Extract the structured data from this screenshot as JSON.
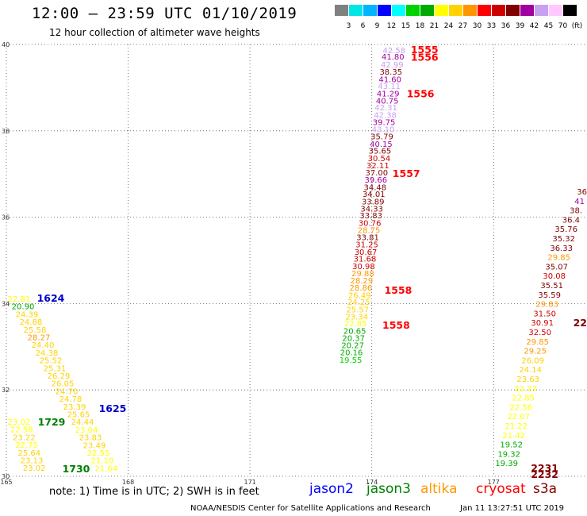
{
  "header": {
    "title": "12:00 – 23:59 UTC 01/10/2019",
    "subtitle": "12 hour collection of altimeter wave heights"
  },
  "colorbar": {
    "colors": [
      "#808080",
      "#00e5e5",
      "#00b4ff",
      "#0000ff",
      "#00ffff",
      "#00d200",
      "#00aa00",
      "#ffff00",
      "#ffd200",
      "#ff9600",
      "#ff0000",
      "#cc0000",
      "#800000",
      "#a000a0",
      "#c8a0f0",
      "#ffc8ff",
      "#000000"
    ],
    "labels": [
      "3",
      "6",
      "9",
      "12",
      "15",
      "18",
      "21",
      "24",
      "27",
      "30",
      "33",
      "36",
      "39",
      "42",
      "45",
      "70",
      "(ft)"
    ]
  },
  "chart_data": {
    "type": "scatter",
    "x_ticks": [
      "165",
      "168",
      "171",
      "174",
      "177"
    ],
    "y_ticks": [
      "40",
      "38",
      "36",
      "34",
      "32",
      "30"
    ],
    "xlim": [
      165,
      179.3
    ],
    "ylim": [
      30,
      40
    ],
    "grid": true,
    "satellites": {
      "jason2": "#0000ff",
      "jason3": "#008000",
      "altika": "#ff9900",
      "cryosat": "#ff0000",
      "s3a": "#800000"
    },
    "tracks": [
      {
        "name": "jason2",
        "color": "#0000ff",
        "points": [
          {
            "lon": 174.55,
            "lat": 39.8,
            "v": "42.58",
            "c": "#c8a0f0"
          },
          {
            "lon": 174.52,
            "lat": 39.65,
            "v": "41.80",
            "c": "#a000a0"
          },
          {
            "lon": 174.5,
            "lat": 39.47,
            "v": "42.99",
            "c": "#c8a0f0"
          },
          {
            "lon": 174.47,
            "lat": 39.3,
            "v": "38.35",
            "c": "#800000"
          },
          {
            "lon": 174.45,
            "lat": 39.13,
            "v": "41.60",
            "c": "#a000a0"
          },
          {
            "lon": 174.43,
            "lat": 38.97,
            "v": "43.11",
            "c": "#c8a0f0"
          },
          {
            "lon": 174.4,
            "lat": 38.8,
            "v": "41.29",
            "c": "#a000a0"
          },
          {
            "lon": 174.38,
            "lat": 38.63,
            "v": "40.75",
            "c": "#a000a0"
          },
          {
            "lon": 174.35,
            "lat": 38.47,
            "v": "42.31",
            "c": "#c8a0f0"
          },
          {
            "lon": 174.33,
            "lat": 38.3,
            "v": "42.38",
            "c": "#c8a0f0"
          },
          {
            "lon": 174.3,
            "lat": 38.13,
            "v": "39.75",
            "c": "#a000a0"
          },
          {
            "lon": 174.28,
            "lat": 37.97,
            "v": "43.10",
            "c": "#c8a0f0"
          },
          {
            "lon": 174.25,
            "lat": 37.8,
            "v": "35.79",
            "c": "#800000"
          },
          {
            "lon": 174.23,
            "lat": 37.63,
            "v": "40.15",
            "c": "#a000a0"
          },
          {
            "lon": 174.2,
            "lat": 37.47,
            "v": "35.65",
            "c": "#800000"
          },
          {
            "lon": 174.18,
            "lat": 37.3,
            "v": "30.54",
            "c": "#cc0000"
          },
          {
            "lon": 174.15,
            "lat": 37.13,
            "v": "32.11",
            "c": "#cc0000"
          },
          {
            "lon": 174.12,
            "lat": 36.97,
            "v": "37.00",
            "c": "#800000"
          },
          {
            "lon": 174.1,
            "lat": 36.8,
            "v": "39.66",
            "c": "#a000a0"
          },
          {
            "lon": 174.08,
            "lat": 36.63,
            "v": "34.48",
            "c": "#800000"
          },
          {
            "lon": 174.05,
            "lat": 36.47,
            "v": "34.01",
            "c": "#800000"
          },
          {
            "lon": 174.03,
            "lat": 36.3,
            "v": "33.89",
            "c": "#800000"
          },
          {
            "lon": 174.0,
            "lat": 36.13,
            "v": "34.33",
            "c": "#800000"
          },
          {
            "lon": 173.98,
            "lat": 35.97,
            "v": "33.83",
            "c": "#800000"
          },
          {
            "lon": 173.95,
            "lat": 35.8,
            "v": "30.76",
            "c": "#cc0000"
          },
          {
            "lon": 173.93,
            "lat": 35.63,
            "v": "28.75",
            "c": "#ff9600"
          },
          {
            "lon": 173.9,
            "lat": 35.47,
            "v": "33.81",
            "c": "#800000"
          },
          {
            "lon": 173.88,
            "lat": 35.3,
            "v": "31.25",
            "c": "#cc0000"
          },
          {
            "lon": 173.85,
            "lat": 35.13,
            "v": "30.67",
            "c": "#cc0000"
          },
          {
            "lon": 173.83,
            "lat": 34.97,
            "v": "31.68",
            "c": "#cc0000"
          },
          {
            "lon": 173.8,
            "lat": 34.8,
            "v": "30.98",
            "c": "#cc0000"
          },
          {
            "lon": 173.78,
            "lat": 34.63,
            "v": "29.88",
            "c": "#ff9600"
          },
          {
            "lon": 173.75,
            "lat": 34.47,
            "v": "28.29",
            "c": "#ff9600"
          },
          {
            "lon": 173.73,
            "lat": 34.3,
            "v": "28.86",
            "c": "#ff9600"
          },
          {
            "lon": 173.7,
            "lat": 34.13,
            "v": "26.49",
            "c": "#ffd200"
          },
          {
            "lon": 173.68,
            "lat": 33.97,
            "v": "24.25",
            "c": "#ffd200"
          },
          {
            "lon": 173.65,
            "lat": 33.8,
            "v": "25.57",
            "c": "#ffd200"
          },
          {
            "lon": 173.63,
            "lat": 33.63,
            "v": "23.34",
            "c": "#ffd200"
          },
          {
            "lon": 173.6,
            "lat": 33.47,
            "v": "22.85",
            "c": "#ffff00"
          },
          {
            "lon": 173.58,
            "lat": 33.3,
            "v": "20.65",
            "c": "#00aa00"
          },
          {
            "lon": 173.55,
            "lat": 33.13,
            "v": "20.37",
            "c": "#00aa00"
          },
          {
            "lon": 173.53,
            "lat": 32.97,
            "v": "20.27",
            "c": "#00aa00"
          },
          {
            "lon": 173.5,
            "lat": 32.8,
            "v": "20.16",
            "c": "#00aa00"
          },
          {
            "lon": 173.48,
            "lat": 32.63,
            "v": "19.55",
            "c": "#00d200"
          }
        ],
        "tags": [
          {
            "t": "1555",
            "lon": 175.3,
            "lat": 39.8,
            "c": "#ff0000"
          },
          {
            "t": "1556",
            "lon": 175.3,
            "lat": 39.62,
            "c": "#ff0000"
          },
          {
            "t": "1556",
            "lon": 175.2,
            "lat": 38.78,
            "c": "#ff0000"
          },
          {
            "t": "1557",
            "lon": 174.85,
            "lat": 36.93,
            "c": "#ff0000"
          },
          {
            "t": "1558",
            "lon": 174.65,
            "lat": 34.23,
            "c": "#ff0000"
          },
          {
            "t": "1558",
            "lon": 174.6,
            "lat": 33.42,
            "c": "#ff0000"
          }
        ]
      }
    ]
  },
  "footer": {
    "note": "note: 1) Time is in UTC; 2) SWH is in feet",
    "legend": [
      {
        "label": "jason2",
        "color": "#0000ff"
      },
      {
        "label": "jason3",
        "color": "#008000"
      },
      {
        "label": "altika",
        "color": "#ff9900"
      },
      {
        "label": "cryosat",
        "color": "#ff0000"
      },
      {
        "label": "s3a",
        "color": "#800000"
      }
    ],
    "credit": "NOAA/NESDIS Center for Satellite Applications and Research",
    "timestamp": "Jan 11 13:27:51 UTC 2019"
  },
  "left_track": {
    "points": [
      {
        "v": "22.81",
        "c": "#ffff00"
      },
      {
        "v": "20.90",
        "c": "#00aa00"
      },
      {
        "v": "24.39",
        "c": "#ffd200"
      },
      {
        "v": "24.88",
        "c": "#ffd200"
      },
      {
        "v": "25.58",
        "c": "#ffd200"
      },
      {
        "v": "28.27",
        "c": "#ff9600"
      },
      {
        "v": "24.40",
        "c": "#ffd200"
      },
      {
        "v": "24.38",
        "c": "#ffd200"
      },
      {
        "v": "25.52",
        "c": "#ffd200"
      },
      {
        "v": "25.31",
        "c": "#ffd200"
      },
      {
        "v": "26.29",
        "c": "#ffd200"
      },
      {
        "v": "26.05",
        "c": "#ffd200"
      },
      {
        "v": "24.70",
        "c": "#ffd200"
      },
      {
        "v": "24.78",
        "c": "#ffd200"
      },
      {
        "v": "23.39",
        "c": "#ffd200"
      },
      {
        "v": "25.65",
        "c": "#ffd200"
      },
      {
        "v": "24.44",
        "c": "#ffd200"
      },
      {
        "v": "23.04",
        "c": "#ffff00"
      },
      {
        "v": "23.83",
        "c": "#ffd200"
      },
      {
        "v": "23.49",
        "c": "#ffd200"
      },
      {
        "v": "22.55",
        "c": "#ffff00"
      },
      {
        "v": "21.10",
        "c": "#ffff00"
      },
      {
        "v": "21.64",
        "c": "#ffff00"
      }
    ],
    "second": [
      {
        "v": "23.02",
        "c": "#ffff00"
      },
      {
        "v": "22.58",
        "c": "#ffff00"
      },
      {
        "v": "23.22",
        "c": "#ffd200"
      },
      {
        "v": "22.75",
        "c": "#ffff00"
      },
      {
        "v": "25.64",
        "c": "#ffd200"
      },
      {
        "v": "23.13",
        "c": "#ffd200"
      },
      {
        "v": "23.02",
        "c": "#ffd200"
      }
    ],
    "tags": [
      {
        "t": "1624",
        "c": "#0000cc"
      },
      {
        "t": "1625",
        "c": "#0000cc"
      },
      {
        "t": "1729",
        "c": "#008000"
      },
      {
        "t": "1730",
        "c": "#008000"
      }
    ]
  },
  "right_track": {
    "points": [
      {
        "v": "36",
        "c": "#800000"
      },
      {
        "v": "41",
        "c": "#a000a0"
      },
      {
        "v": "38.",
        "c": "#800000"
      },
      {
        "v": "36.4",
        "c": "#800000"
      },
      {
        "v": "35.76",
        "c": "#800000"
      },
      {
        "v": "35.32",
        "c": "#800000"
      },
      {
        "v": "36.33",
        "c": "#800000"
      },
      {
        "v": "29.85",
        "c": "#ff9600"
      },
      {
        "v": "35.07",
        "c": "#800000"
      },
      {
        "v": "30.08",
        "c": "#cc0000"
      },
      {
        "v": "35.51",
        "c": "#800000"
      },
      {
        "v": "35.59",
        "c": "#800000"
      },
      {
        "v": "29.83",
        "c": "#ff9600"
      },
      {
        "v": "31.50",
        "c": "#cc0000"
      },
      {
        "v": "30.91",
        "c": "#cc0000"
      },
      {
        "v": "32.50",
        "c": "#cc0000"
      },
      {
        "v": "29.85",
        "c": "#ff9600"
      },
      {
        "v": "29.25",
        "c": "#ff9600"
      },
      {
        "v": "26.09",
        "c": "#ffd200"
      },
      {
        "v": "24.14",
        "c": "#ffd200"
      },
      {
        "v": "23.63",
        "c": "#ffd200"
      },
      {
        "v": "22.27",
        "c": "#ffff00"
      },
      {
        "v": "22.85",
        "c": "#ffff00"
      },
      {
        "v": "22.56",
        "c": "#ffff00"
      },
      {
        "v": "22.07",
        "c": "#ffff00"
      },
      {
        "v": "21.22",
        "c": "#ffff00"
      },
      {
        "v": "21.42",
        "c": "#ffff00"
      },
      {
        "v": "19.52",
        "c": "#00aa00"
      },
      {
        "v": "19.32",
        "c": "#00aa00"
      },
      {
        "v": "19.39",
        "c": "#00aa00"
      }
    ],
    "tags": [
      {
        "t": "22",
        "c": "#800000"
      },
      {
        "t": "2231",
        "c": "#800000"
      },
      {
        "t": "2232",
        "c": "#800000"
      }
    ]
  }
}
